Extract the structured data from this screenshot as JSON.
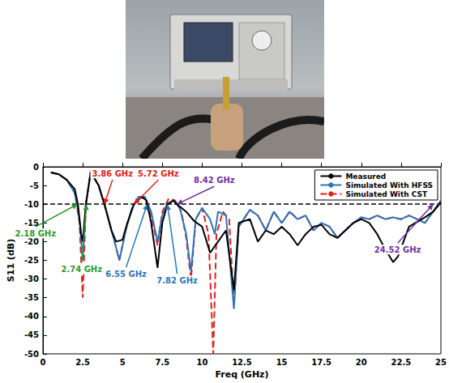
{
  "chart_data": {
    "type": "line",
    "xlabel": "Freq (GHz)",
    "ylabel": "S11 (dB)",
    "xlim": [
      0,
      25
    ],
    "xticks": [
      0,
      2.5,
      5,
      7.5,
      10,
      12.5,
      15,
      17.5,
      20,
      22.5,
      25
    ],
    "ylim": [
      -50,
      0
    ],
    "yticks": [
      -50,
      -45,
      -40,
      -35,
      -30,
      -25,
      -20,
      -15,
      -10,
      -5,
      0
    ],
    "grid": false,
    "legend": "upper right",
    "reference_line": -10,
    "series": [
      {
        "name": "Measured",
        "color": "#000000",
        "line_style": "solid",
        "x": [
          0.5,
          1,
          1.5,
          2,
          2.2,
          2.4,
          2.5,
          2.7,
          3,
          3.5,
          3.86,
          4.3,
          4.6,
          5,
          5.3,
          5.72,
          6.2,
          6.5,
          6.8,
          7.2,
          7.5,
          7.82,
          8.2,
          8.42,
          9,
          9.5,
          10,
          10.5,
          11,
          11.5,
          12,
          12.3,
          13,
          13.5,
          14,
          14.5,
          15,
          15.5,
          16,
          16.5,
          17,
          17.5,
          18,
          18.5,
          19,
          19.5,
          20,
          20.5,
          21,
          21.5,
          22,
          22.3,
          23,
          24,
          24.52,
          25
        ],
        "values": [
          -1.5,
          -2,
          -3.5,
          -6,
          -10,
          -18,
          -20,
          -10,
          -1.5,
          -5,
          -10,
          -17,
          -20,
          -19.5,
          -15,
          -10,
          -8,
          -9,
          -15,
          -27,
          -15,
          -10,
          -9,
          -10,
          -12,
          -14.5,
          -16,
          -23,
          -20,
          -17,
          -33,
          -15,
          -14,
          -20,
          -17,
          -18,
          -16,
          -18,
          -21,
          -18,
          -16,
          -15.5,
          -18,
          -19,
          -17,
          -15,
          -14,
          -15,
          -18,
          -22,
          -25.5,
          -24,
          -16,
          -13.5,
          -12,
          -9.5
        ]
      },
      {
        "name": "Simulated With HFSS",
        "color": "#2e75b6",
        "line_style": "solid",
        "x": [
          0.5,
          1,
          1.5,
          2,
          2.3,
          2.5,
          2.7,
          3,
          3.5,
          4,
          4.5,
          4.8,
          5.2,
          5.6,
          6,
          6.4,
          6.8,
          7.2,
          7.5,
          7.8,
          8.2,
          8.6,
          9,
          9.3,
          9.6,
          10,
          10.5,
          10.8,
          11,
          11.5,
          12,
          12.3,
          13,
          13.5,
          14,
          14.5,
          15,
          15.5,
          16,
          16.5,
          17,
          17.5,
          18,
          18.5,
          19,
          19.5,
          20,
          20.5,
          21,
          21.5,
          22,
          22.5,
          23,
          23.5,
          24,
          24.5,
          25
        ],
        "values": [
          -1.5,
          -2,
          -3.5,
          -7,
          -14,
          -25,
          -10,
          -1.5,
          -5,
          -12,
          -20,
          -25,
          -17,
          -11,
          -8,
          -8,
          -12,
          -20,
          -13,
          -10,
          -9,
          -11,
          -18,
          -28,
          -14,
          -11,
          -14,
          -18,
          -12,
          -13,
          -38,
          -16,
          -11.5,
          -13,
          -17,
          -12,
          -15,
          -12,
          -14,
          -13,
          -17,
          -15,
          -16,
          -19,
          -17,
          -15,
          -13.5,
          -14,
          -13,
          -14,
          -13.5,
          -14,
          -13,
          -14,
          -15,
          -12,
          -9
        ]
      },
      {
        "name": "Simulated With CST",
        "color": "#e0201b",
        "line_style": "dashed",
        "x": [
          0.5,
          1,
          1.5,
          2,
          2.3,
          2.5,
          2.7,
          3,
          3.5,
          4,
          4.5,
          4.8,
          5.2,
          5.6,
          6,
          6.4,
          6.8,
          7.2,
          7.5,
          7.9,
          8.3,
          8.7,
          9,
          9.3,
          9.6,
          10,
          10.4,
          10.7,
          10.9,
          11.3,
          11.7,
          12,
          12.3,
          13,
          13.5,
          14,
          14.5,
          15,
          15.5,
          16,
          16.5,
          17,
          17.5,
          18,
          18.5,
          19,
          19.5,
          20,
          20.5,
          21,
          21.5,
          22,
          22.5,
          23,
          23.5,
          24,
          24.5,
          25
        ],
        "values": [
          -1.5,
          -2,
          -3.5,
          -7,
          -15,
          -35,
          -10,
          -1,
          -5,
          -12,
          -20,
          -25,
          -17,
          -11,
          -8,
          -8.5,
          -13,
          -21,
          -12,
          -8.5,
          -9,
          -12,
          -19,
          -30,
          -14,
          -11,
          -18,
          -50,
          -18,
          -12,
          -14,
          -37,
          -16,
          -11.5,
          -13,
          -17,
          -12,
          -15,
          -12,
          -14,
          -13,
          -17,
          -15,
          -16,
          -19,
          -17,
          -15,
          -13.5,
          -14,
          -13,
          -14,
          -13.5,
          -14,
          -13,
          -14,
          -15,
          -12,
          -9
        ]
      }
    ],
    "annotations": [
      {
        "text": "2.18 GHz",
        "x": 2.18,
        "y": -10,
        "color": "#2e9a2e"
      },
      {
        "text": "2.74 GHz",
        "x": 2.74,
        "y": -10,
        "color": "#2e9a2e"
      },
      {
        "text": "3.86 GHz",
        "x": 3.86,
        "y": -10,
        "color": "#e0201b"
      },
      {
        "text": "5.72 GHz",
        "x": 5.72,
        "y": -10,
        "color": "#e0201b"
      },
      {
        "text": "6.55 GHz",
        "x": 6.55,
        "y": -10,
        "color": "#2e75b6"
      },
      {
        "text": "7.82 GHz",
        "x": 7.82,
        "y": -10,
        "color": "#2e75b6"
      },
      {
        "text": "8.42 GHz",
        "x": 8.42,
        "y": -10,
        "color": "#7030a0"
      },
      {
        "text": "24.52 GHz",
        "x": 24.52,
        "y": -10,
        "color": "#7030a0"
      }
    ]
  }
}
